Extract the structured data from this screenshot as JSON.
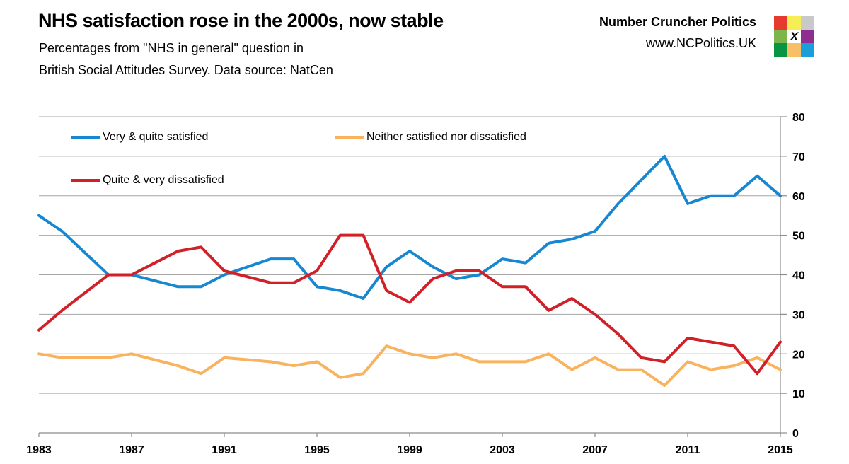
{
  "header": {
    "title": "NHS satisfaction rose in the 2000s, now stable",
    "subtitle_line1": "Percentages from \"NHS in general\" question in",
    "subtitle_line2": "British Social Attitudes Survey. Data source: NatCen"
  },
  "brand": {
    "name": "Number Cruncher Politics",
    "url": "www.NCPolitics.UK",
    "logo_center_glyph": "X",
    "logo_colors": [
      [
        "#e63a2e",
        "#f6ee55",
        "#c9c9c9"
      ],
      [
        "#7cb54a",
        "#ffffff",
        "#8f2d90"
      ],
      [
        "#089442",
        "#f8c066",
        "#1b9fdb"
      ]
    ]
  },
  "chart_data": {
    "type": "line",
    "x": [
      1983,
      1984,
      1986,
      1987,
      1989,
      1990,
      1991,
      1993,
      1994,
      1995,
      1996,
      1997,
      1998,
      1999,
      2000,
      2001,
      2002,
      2003,
      2004,
      2005,
      2006,
      2007,
      2008,
      2009,
      2010,
      2011,
      2012,
      2013,
      2014,
      2015
    ],
    "series": [
      {
        "name": "Very & quite satisfied",
        "color": "#1787d1",
        "values": [
          55,
          51,
          40,
          40,
          37,
          37,
          40,
          44,
          44,
          37,
          36,
          34,
          42,
          46,
          42,
          39,
          40,
          44,
          43,
          48,
          49,
          51,
          58,
          64,
          70,
          58,
          60,
          60,
          65,
          60
        ]
      },
      {
        "name": "Neither satisfied nor dissatisfied",
        "color": "#f9b25d",
        "values": [
          20,
          19,
          19,
          20,
          17,
          15,
          19,
          18,
          17,
          18,
          14,
          15,
          22,
          20,
          19,
          20,
          18,
          18,
          18,
          20,
          16,
          19,
          16,
          16,
          12,
          18,
          16,
          17,
          19,
          16
        ]
      },
      {
        "name": "Quite & very dissatisfied",
        "color": "#d12027",
        "values": [
          26,
          31,
          40,
          40,
          46,
          47,
          41,
          38,
          38,
          41,
          50,
          50,
          36,
          33,
          39,
          41,
          41,
          37,
          37,
          31,
          34,
          30,
          25,
          19,
          18,
          24,
          23,
          22,
          15,
          23
        ]
      }
    ],
    "x_ticks": [
      1983,
      1987,
      1991,
      1995,
      1999,
      2003,
      2007,
      2011,
      2015
    ],
    "y_ticks": [
      0,
      10,
      20,
      30,
      40,
      50,
      60,
      70,
      80
    ],
    "xlim": [
      1983,
      2015
    ],
    "ylim": [
      0,
      80
    ],
    "grid": "horizontal",
    "legend_position": "inside-top-left",
    "legend_order": [
      0,
      1,
      2
    ]
  }
}
